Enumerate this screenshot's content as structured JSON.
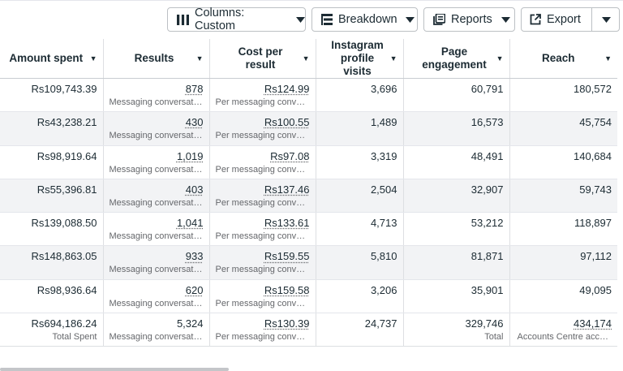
{
  "toolbar": {
    "columns_label": "Columns: Custom",
    "breakdown_label": "Breakdown",
    "reports_label": "Reports",
    "export_label": "Export"
  },
  "headers": [
    "Amount spent",
    "Results",
    "Cost per result",
    "Instagram\nprofile visits",
    "Page\nengagement",
    "Reach"
  ],
  "rows": [
    {
      "amount_spent": "Rs109,743.39",
      "results": "878",
      "results_sub": "Messaging conversati…",
      "cost_per_result": "Rs124.99",
      "cost_sub": "Per messaging conver…",
      "instagram_visits": "3,696",
      "page_engagement": "60,791",
      "reach": "180,572"
    },
    {
      "amount_spent": "Rs43,238.21",
      "results": "430",
      "results_sub": "Messaging conversati…",
      "cost_per_result": "Rs100.55",
      "cost_sub": "Per messaging conver…",
      "instagram_visits": "1,489",
      "page_engagement": "16,573",
      "reach": "45,754"
    },
    {
      "amount_spent": "Rs98,919.64",
      "results": "1,019",
      "results_sub": "Messaging conversati…",
      "cost_per_result": "Rs97.08",
      "cost_sub": "Per messaging conver…",
      "instagram_visits": "3,319",
      "page_engagement": "48,491",
      "reach": "140,684"
    },
    {
      "amount_spent": "Rs55,396.81",
      "results": "403",
      "results_sub": "Messaging conversati…",
      "cost_per_result": "Rs137.46",
      "cost_sub": "Per messaging conver…",
      "instagram_visits": "2,504",
      "page_engagement": "32,907",
      "reach": "59,743"
    },
    {
      "amount_spent": "Rs139,088.50",
      "results": "1,041",
      "results_sub": "Messaging conversati…",
      "cost_per_result": "Rs133.61",
      "cost_sub": "Per messaging conver…",
      "instagram_visits": "4,713",
      "page_engagement": "53,212",
      "reach": "118,897"
    },
    {
      "amount_spent": "Rs148,863.05",
      "results": "933",
      "results_sub": "Messaging conversati…",
      "cost_per_result": "Rs159.55",
      "cost_sub": "Per messaging conver…",
      "instagram_visits": "5,810",
      "page_engagement": "81,871",
      "reach": "97,112"
    },
    {
      "amount_spent": "Rs98,936.64",
      "results": "620",
      "results_sub": "Messaging conversati…",
      "cost_per_result": "Rs159.58",
      "cost_sub": "Per messaging conver…",
      "instagram_visits": "3,206",
      "page_engagement": "35,901",
      "reach": "49,095"
    }
  ],
  "totals": {
    "amount_spent": "Rs694,186.24",
    "amount_sub": "Total Spent",
    "results": "5,324",
    "results_sub": "Messaging conversati…",
    "cost_per_result": "Rs130.39",
    "cost_sub": "Per messaging conver…",
    "instagram_visits": "24,737",
    "page_engagement": "329,746",
    "page_engagement_sub": "Total",
    "reach": "434,174",
    "reach_sub": "Accounts Centre acco…"
  }
}
